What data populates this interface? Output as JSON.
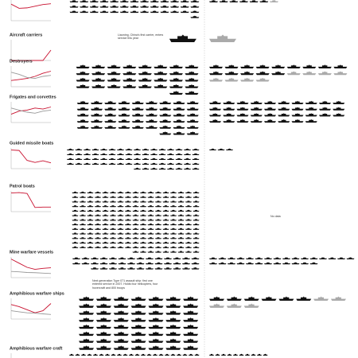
{
  "sections": [
    {
      "top": 3,
      "w": 11,
      "china": 40,
      "others": 6,
      "gray": 1,
      "chart": {
        "ylim": [
          0,
          100
        ],
        "series": [
          {
            "color": "#c8102e",
            "values": [
              80,
              60,
              62,
              70,
              78,
              82
            ]
          }
        ]
      }
    },
    {
      "title": "Aircraft carriers",
      "top": 53,
      "w": 34,
      "china": 1,
      "others": 0,
      "gray": 1,
      "annotation": "Liaoning, China's first carrier, enters service this year",
      "chart": {
        "ylim": [
          0,
          2
        ],
        "series": [
          {
            "color": "#c8102e",
            "values": [
              0,
              0,
              0,
              0,
              0,
              1
            ]
          }
        ]
      }
    },
    {
      "title": "Destroyers",
      "top": 86,
      "w": 17,
      "china": 34,
      "others": 14,
      "gray": 8,
      "chart": {
        "ylim": [
          0,
          100
        ],
        "series": [
          {
            "color": "#c8102e",
            "values": [
              30,
              35,
              40,
              50,
              65,
              75
            ]
          },
          {
            "color": "#999999",
            "values": [
              70,
              60,
              45,
              40,
              50,
              55
            ]
          }
        ]
      }
    },
    {
      "title": "Frigates and corvettes",
      "top": 131,
      "w": 15,
      "china": 48,
      "others": 38,
      "gray": 0,
      "chart": {
        "ylim": [
          0,
          100
        ],
        "series": [
          {
            "color": "#c8102e",
            "values": [
              40,
              55,
              60,
              70,
              65,
              75
            ]
          },
          {
            "color": "#999999",
            "values": [
              70,
              60,
              50,
              45,
              55,
              60
            ]
          }
        ]
      }
    },
    {
      "title": "Guided missile boats",
      "top": 189,
      "w": 9,
      "china": 72,
      "others": 3,
      "gray": 0,
      "chart": {
        "ylim": [
          0,
          100
        ],
        "series": [
          {
            "color": "#c8102e",
            "values": [
              90,
              88,
              40,
              30,
              38,
              28
            ]
          }
        ]
      }
    },
    {
      "title": "Patrol boats",
      "top": 243,
      "w": 8,
      "china": 230,
      "others": 0,
      "gray": 0,
      "annotation": "No data",
      "chart": {
        "ylim": [
          0,
          100
        ],
        "series": [
          {
            "color": "#c8102e",
            "values": [
              90,
              92,
              88,
              20,
              22,
              22
            ]
          }
        ]
      }
    },
    {
      "title": "Mine warfare vessels",
      "top": 326,
      "w": 10,
      "china": 40,
      "others": 28,
      "gray": 0,
      "chart": {
        "ylim": [
          0,
          100
        ],
        "series": [
          {
            "color": "#c8102e",
            "values": [
              90,
              70,
              50,
              40,
              45,
              48
            ]
          },
          {
            "color": "#999999",
            "values": [
              30,
              28,
              25,
              24,
              22,
              20
            ]
          }
        ]
      }
    },
    {
      "title": "Amphibious warfare ships",
      "top": 378,
      "w": 19,
      "china": 56,
      "others": 6,
      "gray": 5,
      "annotation": "Next generation Type 071 assault ship: first one entered service in 2007. Holds four helicopters, four hovercraft and 800 troops",
      "chart": {
        "ylim": [
          0,
          100
        ],
        "series": [
          {
            "color": "#c8102e",
            "values": [
              70,
              60,
              45,
              30,
              40,
              75
            ]
          },
          {
            "color": "#999999",
            "values": [
              40,
              35,
              30,
              28,
              25,
              22
            ]
          }
        ]
      }
    },
    {
      "title": "Amphibious warfare craft",
      "top": 447,
      "w": 6,
      "china": 40,
      "others": 10,
      "gray": 0,
      "chart": {
        "ylim": [
          0,
          100
        ],
        "series": [
          {
            "color": "#c8102e",
            "values": [
              60,
              62,
              65,
              60,
              58,
              60
            ]
          }
        ]
      }
    }
  ]
}
